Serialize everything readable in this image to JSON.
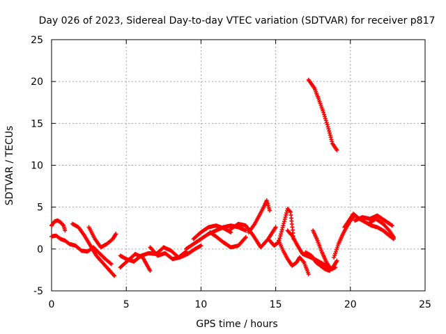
{
  "chart_data": {
    "type": "scatter",
    "title": "Day 026 of 2023, Sidereal Day-to-day VTEC variation (SDTVAR) for receiver p817",
    "xlabel": "GPS time / hours",
    "ylabel": "SDTVAR / TECUs",
    "xlim": [
      0,
      25
    ],
    "ylim": [
      -5,
      25
    ],
    "xticks": [
      0,
      5,
      10,
      15,
      20,
      25
    ],
    "yticks": [
      -5,
      0,
      5,
      10,
      15,
      20,
      25
    ],
    "grid": true,
    "legend": "none",
    "marker": "+",
    "series": [
      {
        "name": "SDTVAR",
        "color": "#ff0000",
        "traces": [
          {
            "x": [
              0.0,
              0.3,
              0.6,
              0.9,
              1.2,
              1.6,
              2.0,
              2.4,
              2.8,
              3.2,
              3.6,
              4.0
            ],
            "y": [
              1.5,
              1.6,
              1.2,
              1.0,
              0.6,
              0.4,
              -0.2,
              -0.3,
              0.2,
              -0.5,
              -1.2,
              -1.8
            ]
          },
          {
            "x": [
              0.0,
              0.2,
              0.4,
              0.6,
              0.8,
              0.9
            ],
            "y": [
              2.8,
              3.3,
              3.4,
              3.2,
              2.8,
              2.2
            ]
          },
          {
            "x": [
              1.4,
              1.8,
              2.2,
              2.6,
              3.0,
              3.4,
              3.7,
              4.0,
              4.2
            ],
            "y": [
              3.0,
              2.6,
              1.6,
              0.4,
              -0.8,
              -1.6,
              -2.2,
              -2.8,
              -3.2
            ]
          },
          {
            "x": [
              2.5,
              2.9,
              3.3,
              3.7,
              4.1,
              4.3
            ],
            "y": [
              2.6,
              1.2,
              0.2,
              0.6,
              1.2,
              1.8
            ]
          },
          {
            "x": [
              4.6,
              5.0,
              5.5,
              6.0,
              6.5,
              7.0,
              7.5,
              8.0,
              8.5,
              9.0
            ],
            "y": [
              -0.8,
              -1.2,
              -1.5,
              -0.8,
              -0.5,
              -0.6,
              0.2,
              -0.2,
              -1.0,
              -0.3
            ]
          },
          {
            "x": [
              4.6,
              5.1,
              5.6,
              6.1,
              6.6
            ],
            "y": [
              -2.2,
              -1.4,
              -0.6,
              -1.0,
              -2.6
            ]
          },
          {
            "x": [
              6.6,
              7.1,
              7.6,
              8.1,
              8.6,
              9.1,
              9.6,
              10.0
            ],
            "y": [
              0.2,
              -0.8,
              -0.5,
              -1.2,
              -1.0,
              -0.6,
              0.0,
              0.4
            ]
          },
          {
            "x": [
              9.0,
              9.5,
              10.0,
              10.5,
              11.0,
              11.5,
              12.0,
              12.5,
              13.0
            ],
            "y": [
              0.0,
              0.6,
              1.2,
              1.8,
              2.2,
              2.6,
              2.8,
              2.6,
              2.2
            ]
          },
          {
            "x": [
              9.5,
              10.0,
              10.5,
              11.0,
              11.5,
              12.0
            ],
            "y": [
              1.2,
              2.0,
              2.6,
              2.8,
              2.5,
              2.0
            ]
          },
          {
            "x": [
              10.6,
              11.0,
              11.5,
              12.0,
              12.5,
              13.0
            ],
            "y": [
              2.0,
              1.5,
              0.8,
              0.2,
              0.4,
              1.4
            ]
          },
          {
            "x": [
              12.0,
              12.5,
              13.0,
              13.5,
              14.0,
              14.5,
              15.0
            ],
            "y": [
              2.4,
              3.0,
              2.8,
              1.6,
              0.2,
              1.2,
              2.6
            ]
          },
          {
            "x": [
              13.2,
              13.6,
              13.9,
              14.2,
              14.4,
              14.6
            ],
            "y": [
              2.0,
              3.0,
              4.0,
              5.0,
              5.8,
              4.6
            ]
          },
          {
            "x": [
              14.6,
              14.9,
              15.2,
              15.5,
              15.8,
              16.0,
              16.2
            ],
            "y": [
              1.0,
              0.4,
              0.8,
              2.8,
              4.8,
              4.4,
              1.2
            ]
          },
          {
            "x": [
              15.2,
              15.5,
              15.8,
              16.1,
              16.4,
              16.6,
              16.9,
              17.2
            ],
            "y": [
              1.0,
              -0.2,
              -1.2,
              -2.0,
              -1.6,
              -1.0,
              -1.6,
              -3.0
            ]
          },
          {
            "x": [
              15.8,
              16.1,
              16.4,
              16.8,
              17.2,
              17.6,
              18.0,
              18.4,
              18.8
            ],
            "y": [
              2.2,
              1.6,
              0.6,
              -0.6,
              -0.9,
              -1.2,
              -1.6,
              -2.0,
              -2.4
            ]
          },
          {
            "x": [
              17.0,
              17.4,
              17.7,
              18.0,
              18.3,
              18.6,
              18.9,
              19.1
            ],
            "y": [
              -0.4,
              -0.8,
              -1.6,
              -2.0,
              -2.4,
              -2.6,
              -2.0,
              -1.4
            ]
          },
          {
            "x": [
              17.5,
              17.8,
              18.1,
              18.4,
              18.7,
              19.0
            ],
            "y": [
              2.2,
              1.0,
              -0.4,
              -1.6,
              -2.4,
              -2.2
            ]
          },
          {
            "x": [
              18.9,
              19.2,
              19.5,
              19.8,
              20.0,
              20.2
            ],
            "y": [
              -1.0,
              0.6,
              1.8,
              2.8,
              3.4,
              3.8
            ]
          },
          {
            "x": [
              19.6,
              19.9,
              20.2,
              20.6,
              21.0,
              21.4,
              21.8,
              22.2,
              22.6,
              22.9
            ],
            "y": [
              2.6,
              3.4,
              4.2,
              3.6,
              3.2,
              2.8,
              2.6,
              2.2,
              1.6,
              1.2
            ]
          },
          {
            "x": [
              20.3,
              20.8,
              21.3,
              21.8,
              22.3,
              22.8
            ],
            "y": [
              3.4,
              3.8,
              3.6,
              4.0,
              3.4,
              2.8
            ]
          },
          {
            "x": [
              21.2,
              21.7,
              22.2,
              22.6,
              22.9
            ],
            "y": [
              3.0,
              3.6,
              3.0,
              2.2,
              1.4
            ]
          },
          {
            "x": [
              17.2,
              17.6,
              17.9,
              18.2,
              18.5,
              18.8,
              19.1
            ],
            "y": [
              20.2,
              19.2,
              17.8,
              16.3,
              14.6,
              12.6,
              11.8
            ]
          }
        ]
      }
    ]
  }
}
